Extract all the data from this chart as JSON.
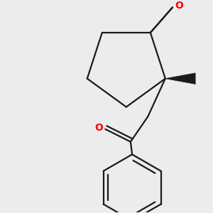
{
  "bg_color": "#ececec",
  "line_color": "#1a1a1a",
  "oxygen_color": "#ff0000",
  "line_width": 1.6,
  "dbo": 0.012,
  "fig_size": [
    3.0,
    3.0
  ],
  "dpi": 100
}
